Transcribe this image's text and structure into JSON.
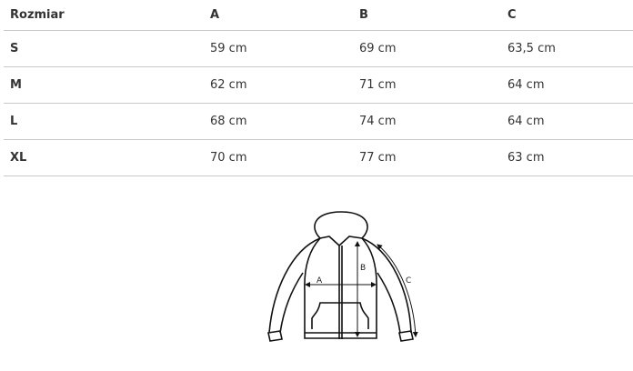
{
  "table": {
    "headers": [
      "Rozmiar",
      "A",
      "B",
      "C"
    ],
    "rows": [
      [
        "S",
        "59 cm",
        "69 cm",
        "63,5 cm"
      ],
      [
        "M",
        "62 cm",
        "71 cm",
        "64 cm"
      ],
      [
        "L",
        "68 cm",
        "74 cm",
        "64 cm"
      ],
      [
        "XL",
        "70 cm",
        "77 cm",
        "63 cm"
      ]
    ]
  },
  "diagram": {
    "label_a": "A",
    "label_b": "B",
    "label_c": "C"
  }
}
